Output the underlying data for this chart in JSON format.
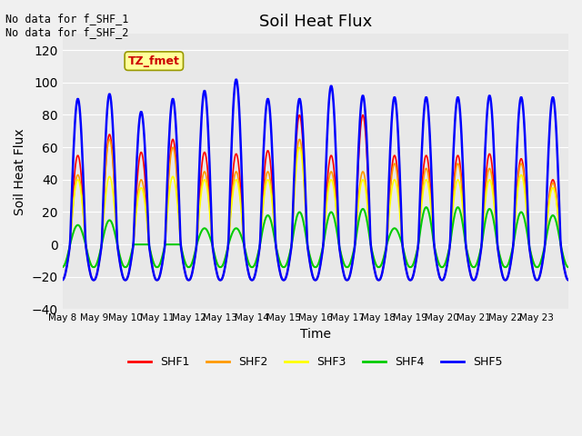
{
  "title": "Soil Heat Flux",
  "xlabel": "Time",
  "ylabel": "Soil Heat Flux",
  "ylim": [
    -40,
    130
  ],
  "yticks": [
    -40,
    -20,
    0,
    20,
    40,
    60,
    80,
    100,
    120
  ],
  "background_color": "#f0f0f0",
  "plot_bg_color": "#e8e8e8",
  "annotation_text": "No data for f_SHF_1\nNo data for f_SHF_2",
  "legend_label_text": "TZ_fmet",
  "legend_entries": [
    "SHF1",
    "SHF2",
    "SHF3",
    "SHF4",
    "SHF5"
  ],
  "line_colors": [
    "#ff0000",
    "#ff9900",
    "#ffff00",
    "#00cc00",
    "#0000ff"
  ],
  "x_tick_labels": [
    "May 8",
    "May 9",
    "May 10",
    "May 11",
    "May 12",
    "May 13",
    "May 14",
    "May 15",
    "May 16",
    "May 17",
    "May 18",
    "May 19",
    "May 20",
    "May 21",
    "May 22",
    "May 23"
  ],
  "num_days": 16,
  "start_day": 8,
  "day_peaks_shf1": [
    55,
    68,
    57,
    65,
    57,
    56,
    58,
    80,
    55,
    80,
    55,
    55,
    55,
    56,
    53,
    40
  ],
  "day_peaks_shf2": [
    43,
    65,
    40,
    60,
    45,
    45,
    45,
    65,
    45,
    45,
    50,
    47,
    50,
    47,
    50,
    38
  ],
  "day_peaks_shf3": [
    40,
    42,
    35,
    42,
    40,
    40,
    40,
    60,
    40,
    40,
    40,
    40,
    40,
    40,
    43,
    35
  ],
  "day_peaks_shf4": [
    12,
    15,
    0,
    0,
    10,
    10,
    18,
    20,
    20,
    22,
    10,
    23,
    23,
    22,
    20,
    18
  ],
  "day_peaks_shf5": [
    90,
    93,
    82,
    90,
    95,
    102,
    90,
    90,
    98,
    92,
    91,
    91,
    91,
    92,
    91,
    91
  ],
  "trough_shf1": 22,
  "trough_shf2": 22,
  "trough_shf3": 14,
  "trough_shf4": 14,
  "trough_shf5": 22
}
